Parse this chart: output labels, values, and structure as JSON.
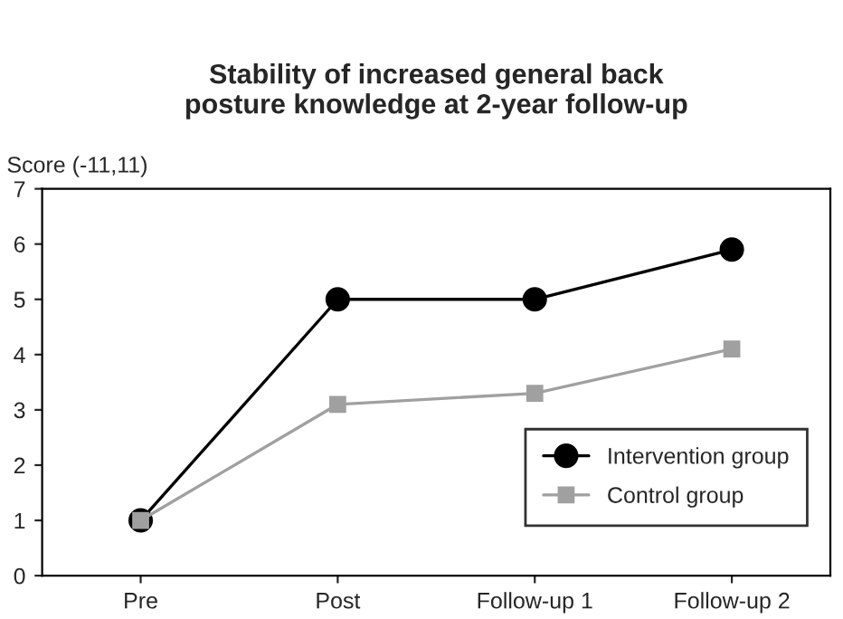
{
  "chart_data": {
    "type": "line",
    "title": "Stability of increased general back\nposture knowledge at 2-year follow-up",
    "ylabel": "Score (-11,11)",
    "categories": [
      "Pre",
      "Post",
      "Follow-up 1",
      "Follow-up 2"
    ],
    "series": [
      {
        "name": "Intervention group",
        "color": "#000000",
        "values": [
          1,
          5,
          5,
          5.9
        ],
        "marker": "circle"
      },
      {
        "name": "Control group",
        "color": "#a0a0a0",
        "values": [
          1,
          3.1,
          3.3,
          4.1
        ],
        "marker": "square"
      }
    ],
    "ylim": [
      0,
      7
    ],
    "yticks": [
      0,
      1,
      2,
      3,
      4,
      5,
      6,
      7
    ],
    "grid": false,
    "legend": "bottom right",
    "line_style": "solid"
  }
}
